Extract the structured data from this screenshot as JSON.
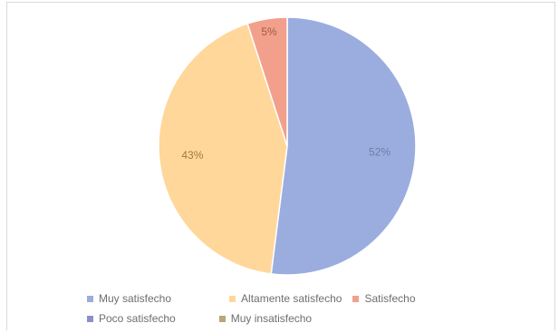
{
  "chart_data": {
    "type": "pie",
    "title": "",
    "legend_position": "bottom",
    "slices": [
      {
        "name": "Muy satisfecho",
        "value": 52,
        "label": "52%",
        "color": "#9badde",
        "label_color": "#6e7fa8"
      },
      {
        "name": "Altamente satisfecho",
        "value": 43,
        "label": "43%",
        "color": "#ffd79a",
        "label_color": "#a07c3c"
      },
      {
        "name": "Satisfecho",
        "value": 5,
        "label": "5%",
        "color": "#f2a08c",
        "label_color": "#a05a46"
      },
      {
        "name": "Poco satisfecho",
        "value": 0,
        "label": "",
        "color": "#8a90c6",
        "label_color": "#6e6e6e"
      },
      {
        "name": "Muy insatisfecho",
        "value": 0,
        "label": "",
        "color": "#b8a678",
        "label_color": "#6e6e6e"
      }
    ]
  }
}
